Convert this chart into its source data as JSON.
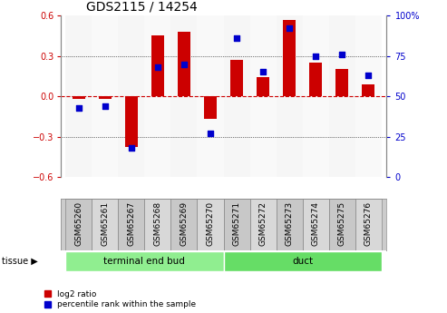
{
  "title": "GDS2115 / 14254",
  "samples": [
    "GSM65260",
    "GSM65261",
    "GSM65267",
    "GSM65268",
    "GSM65269",
    "GSM65270",
    "GSM65271",
    "GSM65272",
    "GSM65273",
    "GSM65274",
    "GSM65275",
    "GSM65276"
  ],
  "log2_ratio": [
    -0.02,
    -0.02,
    -0.38,
    0.45,
    0.48,
    -0.17,
    0.27,
    0.14,
    0.57,
    0.25,
    0.2,
    0.09
  ],
  "percentile": [
    43,
    44,
    18,
    68,
    70,
    27,
    86,
    65,
    92,
    75,
    76,
    63
  ],
  "tissue_groups": [
    {
      "label": "terminal end bud",
      "start": 0,
      "end": 6,
      "color": "#90EE90"
    },
    {
      "label": "duct",
      "start": 6,
      "end": 12,
      "color": "#66DD66"
    }
  ],
  "ylim_left": [
    -0.6,
    0.6
  ],
  "ylim_right": [
    0,
    100
  ],
  "yticks_left": [
    -0.6,
    -0.3,
    0.0,
    0.3,
    0.6
  ],
  "yticks_right": [
    0,
    25,
    50,
    75,
    100
  ],
  "bar_color": "#CC0000",
  "dot_color": "#0000CC",
  "zero_line_color": "#CC0000",
  "grid_color": "#000000",
  "bg_color": "#FFFFFF",
  "bar_width": 0.5,
  "dot_size": 18,
  "col_colors": [
    "#C8C8C8",
    "#D8D8D8"
  ]
}
